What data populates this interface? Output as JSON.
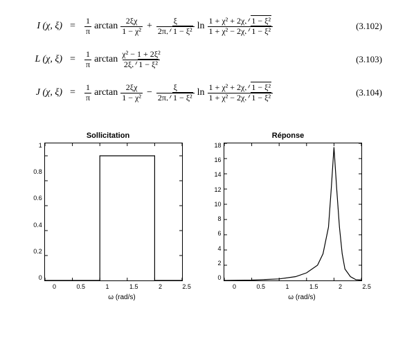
{
  "equations": [
    {
      "lhs": "I (χ, ξ)",
      "num": "(3.102)",
      "terms": {
        "frac1": {
          "n": "1",
          "d": "π"
        },
        "fn1": "arctan",
        "frac2": {
          "n": "2ξχ",
          "d": "1 − χ²"
        },
        "sign": "+",
        "frac3": {
          "n": "ξ",
          "d_pre": "2π",
          "d_rad": "1 − ξ²"
        },
        "fn2": "ln",
        "frac4": {
          "n_pre": "1 + χ² + 2χ",
          "n_rad": "1 − ξ²",
          "d_pre": "1 + χ² − 2χ",
          "d_rad": "1 − ξ²"
        }
      }
    },
    {
      "lhs": "L (χ, ξ)",
      "num": "(3.103)",
      "formL": {
        "frac1": {
          "n": "1",
          "d": "π"
        },
        "fn1": "arctan",
        "fracL": {
          "n": "χ² − 1 + 2ξ²",
          "d_pre": "2ξ",
          "d_rad": "1 − ξ²"
        }
      }
    },
    {
      "lhs": "J (χ, ξ)",
      "num": "(3.104)",
      "terms": {
        "frac1": {
          "n": "1",
          "d": "π"
        },
        "fn1": "arctan",
        "frac2": {
          "n": "2ξχ",
          "d": "1 − χ²"
        },
        "sign": "−",
        "frac3": {
          "n": "ξ",
          "d_pre": "2π",
          "d_rad": "1 − ξ²"
        },
        "fn2": "ln",
        "frac4": {
          "n_pre": "1 + χ² + 2χ",
          "n_rad": "1 − ξ²",
          "d_pre": "1 + χ² − 2χ",
          "d_rad": "1 − ξ²"
        }
      }
    }
  ],
  "chart_left": {
    "title": "Sollicitation",
    "xlabel": "ω (rad/s)",
    "xlim": [
      0,
      2.5
    ],
    "xticks": [
      "0",
      "0.5",
      "1",
      "1.5",
      "2",
      "2.5"
    ],
    "ylim": [
      0,
      1.1
    ],
    "yticks": [
      "1",
      "0.8",
      "0.6",
      "0.4",
      "0.2",
      "0"
    ],
    "type": "line",
    "line_color": "#000000",
    "line_width": 1.2,
    "background_color": "#ffffff",
    "points": [
      [
        0,
        0
      ],
      [
        1,
        0
      ],
      [
        1,
        1
      ],
      [
        2,
        1
      ],
      [
        2,
        0
      ],
      [
        2.5,
        0
      ]
    ],
    "title_fontsize": 11,
    "tick_fontsize": 9,
    "label_fontsize": 10
  },
  "chart_right": {
    "title": "Réponse",
    "xlabel": "ω (rad/s)",
    "xlim": [
      0,
      2.5
    ],
    "xticks": [
      "0",
      "0.5",
      "1",
      "1.5",
      "2",
      "2.5"
    ],
    "ylim": [
      0,
      18
    ],
    "yticks": [
      "18",
      "16",
      "14",
      "12",
      "10",
      "8",
      "6",
      "4",
      "2",
      "0"
    ],
    "type": "line",
    "line_color": "#000000",
    "line_width": 1.2,
    "background_color": "#ffffff",
    "points": [
      [
        0,
        0
      ],
      [
        0.5,
        0.05
      ],
      [
        1,
        0.2
      ],
      [
        1.3,
        0.5
      ],
      [
        1.5,
        1.0
      ],
      [
        1.7,
        2.0
      ],
      [
        1.8,
        3.5
      ],
      [
        1.9,
        7.0
      ],
      [
        1.95,
        12.0
      ],
      [
        2.0,
        17.5
      ],
      [
        2.05,
        12.0
      ],
      [
        2.1,
        7.0
      ],
      [
        2.15,
        3.5
      ],
      [
        2.2,
        1.5
      ],
      [
        2.3,
        0.5
      ],
      [
        2.4,
        0.1
      ],
      [
        2.5,
        0.05
      ]
    ],
    "title_fontsize": 11,
    "tick_fontsize": 9,
    "label_fontsize": 10
  }
}
